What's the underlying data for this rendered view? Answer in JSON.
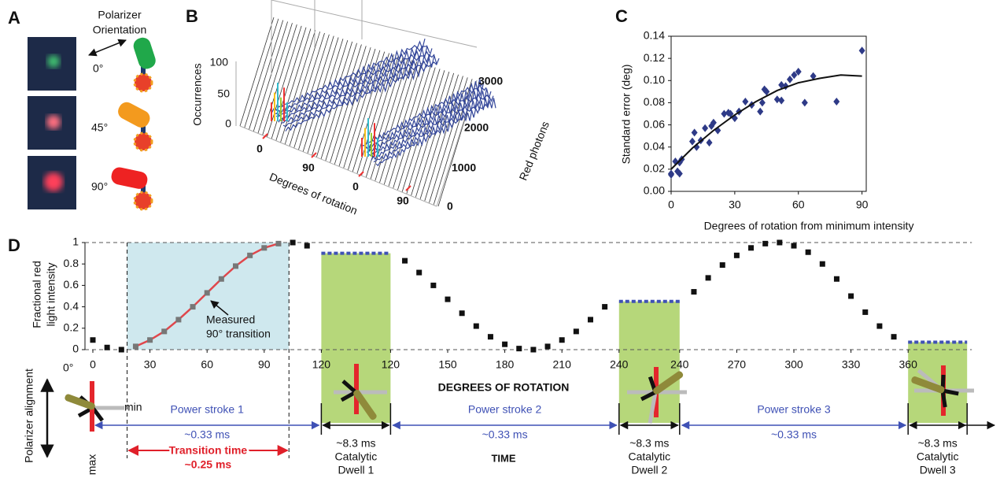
{
  "panel_a": {
    "label": "A",
    "title_lines": [
      "Polarizer",
      "Orientation"
    ],
    "angles": [
      "0°",
      "45°",
      "90°"
    ]
  },
  "panel_b": {
    "label": "B",
    "z_label": "Occurrences",
    "z_ticks": [
      "0",
      "50",
      "100"
    ],
    "x_label": "Degrees of rotation",
    "x_ticks": [
      "0",
      "90",
      "0",
      "90"
    ],
    "y_label": "Red photons",
    "y_ticks": [
      "0",
      "1000",
      "2000",
      "3000"
    ]
  },
  "chart_data": [
    {
      "type": "scatter",
      "panel_label": "C",
      "x_label": "Degrees of rotation from minimum intensity",
      "y_label": "Standard error (deg)",
      "xlim": [
        0,
        92
      ],
      "xticks": [
        0,
        30,
        60,
        90
      ],
      "ylim": [
        0,
        0.14
      ],
      "yticks": [
        {
          "value": 0,
          "label": "0.00"
        },
        {
          "value": 0.02,
          "label": "0.02"
        },
        {
          "value": 0.04,
          "label": "0.04"
        },
        {
          "value": 0.06,
          "label": "0.06"
        },
        {
          "value": 0.08,
          "label": "0.08"
        },
        {
          "value": 0.1,
          "label": "0.10"
        },
        {
          "value": 0.12,
          "label": "0.12"
        },
        {
          "value": 0.14,
          "label": "0.14"
        }
      ],
      "series": [
        {
          "type": "scatter",
          "color": "#2e3a87",
          "x": [
            0,
            0,
            2,
            3,
            4,
            4,
            5,
            10,
            11,
            12,
            14,
            16,
            18,
            19,
            20,
            22,
            25,
            27,
            28,
            30,
            32,
            35,
            38,
            42,
            43,
            44,
            45,
            50,
            52,
            52,
            54,
            56,
            58,
            60,
            63,
            67,
            78,
            90
          ],
          "values": [
            0.015,
            0.016,
            0.027,
            0.018,
            0.016,
            0.026,
            0.029,
            0.045,
            0.053,
            0.04,
            0.046,
            0.057,
            0.044,
            0.059,
            0.062,
            0.055,
            0.07,
            0.071,
            0.07,
            0.066,
            0.072,
            0.081,
            0.078,
            0.072,
            0.08,
            0.092,
            0.09,
            0.083,
            0.096,
            0.082,
            0.095,
            0.101,
            0.105,
            0.108,
            0.08,
            0.104,
            0.081,
            0.127
          ]
        },
        {
          "type": "line",
          "color": "#111",
          "x": [
            0,
            10,
            20,
            30,
            40,
            50,
            60,
            70,
            80,
            90
          ],
          "values": [
            0.02,
            0.039,
            0.055,
            0.069,
            0.081,
            0.091,
            0.098,
            0.102,
            0.105,
            0.104
          ]
        }
      ]
    },
    {
      "type": "timeline",
      "panel_label": "D",
      "y_label_lines": [
        "Fractional red",
        "light intensity"
      ],
      "x_label": "DEGREES OF ROTATION",
      "time_label": "TIME",
      "ylim": [
        0,
        1
      ],
      "yticks": [
        0,
        0.2,
        0.4,
        0.6,
        0.8,
        1
      ],
      "marker_color": "#111",
      "dwell_color": "#b6d77a",
      "dwell_line_color": "#3f51b5",
      "segments": [
        {
          "xlim": [
            0,
            120
          ],
          "xticks": [
            0,
            30,
            60,
            90,
            120
          ],
          "stroke_label": "Power stroke 1",
          "duration_label": "~0.33 ms",
          "x": [
            0,
            7.5,
            15,
            22.5,
            30,
            37.5,
            45,
            52.5,
            60,
            67.5,
            75,
            82.5,
            90,
            97.5,
            105,
            112.5
          ],
          "values": [
            0.09,
            0.02,
            0,
            0.03,
            0.09,
            0.17,
            0.28,
            0.4,
            0.53,
            0.66,
            0.78,
            0.88,
            0.95,
            0.99,
            1,
            0.97
          ]
        },
        {
          "xlim": [
            120,
            240
          ],
          "xticks": [
            120,
            150,
            180,
            210,
            240
          ],
          "stroke_label": "Power stroke 2",
          "duration_label": "~0.33 ms",
          "x": [
            127.5,
            135,
            142.5,
            150,
            157.5,
            165,
            172.5,
            180,
            187.5,
            195,
            202.5,
            210,
            217.5,
            225,
            232.5
          ],
          "values": [
            0.83,
            0.72,
            0.6,
            0.47,
            0.34,
            0.22,
            0.12,
            0.05,
            0.01,
            0,
            0.03,
            0.09,
            0.17,
            0.28,
            0.4
          ]
        },
        {
          "xlim": [
            240,
            360
          ],
          "xticks": [
            240,
            270,
            300,
            330,
            360
          ],
          "stroke_label": "Power stroke 3",
          "duration_label": "~0.33 ms",
          "x": [
            247.5,
            255,
            262.5,
            270,
            277.5,
            285,
            292.5,
            300,
            307.5,
            315,
            322.5,
            330,
            337.5,
            345,
            352.5
          ],
          "values": [
            0.54,
            0.67,
            0.79,
            0.88,
            0.95,
            0.99,
            1,
            0.97,
            0.91,
            0.8,
            0.66,
            0.5,
            0.35,
            0.22,
            0.12
          ]
        }
      ],
      "dwells": [
        {
          "value": 0.9,
          "duration_label": "~8.3 ms",
          "name_lines": [
            "Catalytic",
            "Dwell 1"
          ]
        },
        {
          "value": 0.45,
          "duration_label": "~8.3 ms",
          "name_lines": [
            "Catalytic",
            "Dwell 2"
          ]
        },
        {
          "value": 0.07,
          "duration_label": "~8.3 ms",
          "name_lines": [
            "Catalytic",
            "Dwell 3"
          ]
        }
      ],
      "transition": {
        "x_range": [
          18,
          103
        ],
        "color": "#cfe8ee",
        "curve_color": "#e0474c",
        "marker_color": "#777",
        "label_lines": [
          "Measured",
          "90° transition"
        ],
        "time_label_lines": [
          "Transition time",
          "~0.25 ms"
        ]
      },
      "polarizer": {
        "axis_label": "Polarizer alignment",
        "zero": "0°",
        "min": "min",
        "max": "max"
      }
    }
  ]
}
